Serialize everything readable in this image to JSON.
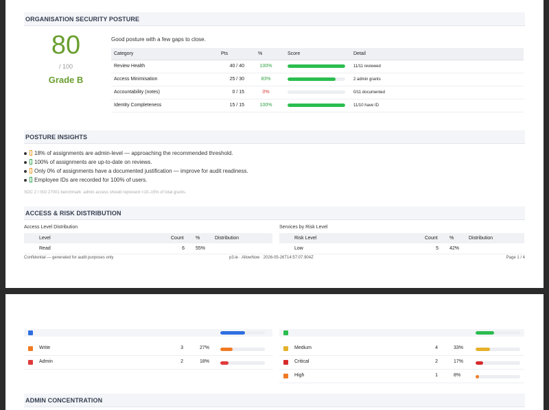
{
  "page1": {
    "security_section_title": "ORGANISATION SECURITY POSTURE",
    "score": "80",
    "score_outof": "/ 100",
    "grade": "Grade B",
    "summary": "Good posture with a few gaps to close.",
    "posture_table": {
      "headers": [
        "Category",
        "Pts",
        "%",
        "Score",
        "Detail"
      ],
      "rows": [
        {
          "category": "Review Health",
          "pts": "40 / 40",
          "pct": "100%",
          "fill": 1.0,
          "detail": "11/11 reviewed"
        },
        {
          "category": "Access Minimisation",
          "pts": "25 / 30",
          "pct": "83%",
          "fill": 0.83,
          "detail": "2 admin grants"
        },
        {
          "category": "Accountability (notes)",
          "pts": "0 / 15",
          "pct": "0%",
          "fill": 0.0,
          "detail": "0/11 documented"
        },
        {
          "category": "Identity Completeness",
          "pts": "15 / 15",
          "pct": "100%",
          "fill": 1.0,
          "detail": "11/10 have ID"
        }
      ]
    },
    "insights_section_title": "POSTURE INSIGHTS",
    "insights": [
      {
        "type": "warn",
        "text": "18% of assignments are admin-level — approaching the recommended threshold."
      },
      {
        "type": "ok",
        "text": "100% of assignments are up-to-date on reviews."
      },
      {
        "type": "warn",
        "text": "Only 0% of assignments have a documented justification — improve for audit readiness."
      },
      {
        "type": "ok",
        "text": "Employee IDs are recorded for 100% of users."
      }
    ],
    "benchmark": "SOC 2 / ISO 27001 benchmark: admin access should represent <10–15% of total grants.",
    "distribution_section_title": "ACCESS & RISK DISTRIBUTION",
    "access_level": {
      "title": "Access Level Distribution",
      "headers": [
        "Level",
        "Count",
        "%",
        "Distribution"
      ],
      "rows": [
        {
          "label": "Read",
          "count": "6",
          "pct": "55%"
        }
      ]
    },
    "risk_level": {
      "title": "Services by Risk Level",
      "headers": [
        "Risk Level",
        "Count",
        "%",
        "Distribution"
      ],
      "rows": [
        {
          "label": "Low",
          "count": "5",
          "pct": "42%"
        }
      ]
    },
    "footer_left": "Confidential — generated for audit purposes only",
    "footer_center": "p3.ie · AllowNow · 2026-05-26T14:57:07.904Z",
    "footer_right": "Page 1 / 4"
  },
  "page2": {
    "access_header_fill": 0.55,
    "risk_header_fill": 0.42,
    "access_rows": [
      {
        "label": "Write",
        "count": "3",
        "pct": "27%",
        "fill": 0.27,
        "color": "#f07a22"
      },
      {
        "label": "Admin",
        "count": "2",
        "pct": "18%",
        "fill": 0.18,
        "color": "#e03a3a"
      }
    ],
    "risk_rows": [
      {
        "label": "Medium",
        "count": "4",
        "pct": "33%",
        "fill": 0.33,
        "color": "#e5b12a"
      },
      {
        "label": "Critical",
        "count": "2",
        "pct": "17%",
        "fill": 0.17,
        "color": "#d62a2a"
      },
      {
        "label": "High",
        "count": "1",
        "pct": "8%",
        "fill": 0.08,
        "color": "#f07a22"
      }
    ],
    "admin_section_title": "ADMIN CONCENTRATION"
  },
  "colors": {
    "score_green": "#6a9e2f",
    "bar_green": "#2bbd4f",
    "read_blue": "#2f6ee0",
    "low_green": "#2bbd4f"
  }
}
